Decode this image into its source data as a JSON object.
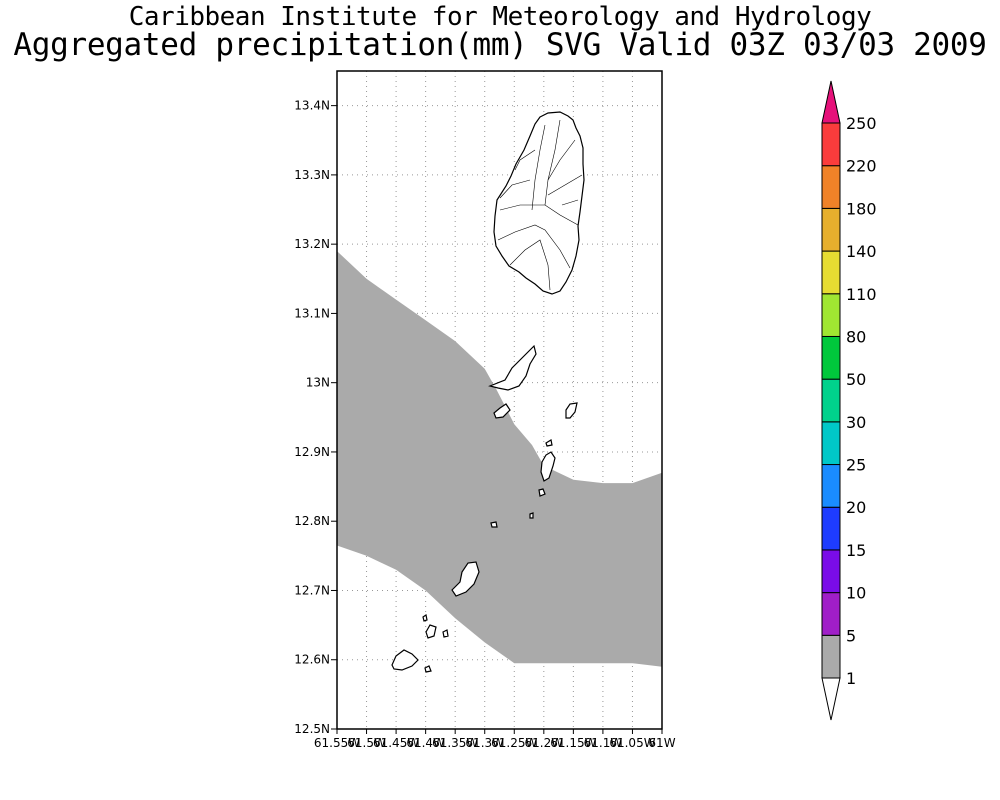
{
  "title": {
    "line1": "Caribbean Institute for Meteorology and Hydrology",
    "line2": "Aggregated precipitation(mm) SVG Valid 03Z 03/03 2009"
  },
  "map": {
    "lat_range": [
      12.5,
      13.45
    ],
    "lon_range": [
      -61.55,
      -61.0
    ],
    "lat_ticks": [
      {
        "value": 12.5,
        "label": "12.5N"
      },
      {
        "value": 12.6,
        "label": "12.6N"
      },
      {
        "value": 12.7,
        "label": "12.7N"
      },
      {
        "value": 12.8,
        "label": "12.8N"
      },
      {
        "value": 12.9,
        "label": "12.9N"
      },
      {
        "value": 13.0,
        "label": "13N"
      },
      {
        "value": 13.1,
        "label": "13.1N"
      },
      {
        "value": 13.2,
        "label": "13.2N"
      },
      {
        "value": 13.3,
        "label": "13.3N"
      },
      {
        "value": 13.4,
        "label": "13.4N"
      }
    ],
    "lon_ticks": [
      {
        "value": -61.55,
        "label": "61.55W"
      },
      {
        "value": -61.5,
        "label": "61.5W"
      },
      {
        "value": -61.45,
        "label": "61.45W"
      },
      {
        "value": -61.4,
        "label": "61.4W"
      },
      {
        "value": -61.35,
        "label": "61.35W"
      },
      {
        "value": -61.3,
        "label": "61.3W"
      },
      {
        "value": -61.25,
        "label": "61.25W"
      },
      {
        "value": -61.2,
        "label": "61.2W"
      },
      {
        "value": -61.15,
        "label": "61.15W"
      },
      {
        "value": -61.1,
        "label": "61.1W"
      },
      {
        "value": -61.05,
        "label": "61.05W"
      },
      {
        "value": -61.0,
        "label": "61W"
      }
    ],
    "grid": true,
    "precip_band": {
      "category": "1-5 mm",
      "color": "#aaaaaa",
      "north_edge": [
        [
          -61.55,
          13.19
        ],
        [
          -61.5,
          13.15
        ],
        [
          -61.45,
          13.12
        ],
        [
          -61.4,
          13.09
        ],
        [
          -61.35,
          13.06
        ],
        [
          -61.3,
          13.02
        ],
        [
          -61.28,
          12.99
        ],
        [
          -61.25,
          12.94
        ],
        [
          -61.22,
          12.91
        ],
        [
          -61.2,
          12.88
        ],
        [
          -61.15,
          12.86
        ],
        [
          -61.1,
          12.855
        ],
        [
          -61.05,
          12.855
        ],
        [
          -61.0,
          12.87
        ]
      ],
      "south_edge": [
        [
          -61.0,
          12.59
        ],
        [
          -61.05,
          12.595
        ],
        [
          -61.1,
          12.595
        ],
        [
          -61.15,
          12.595
        ],
        [
          -61.2,
          12.595
        ],
        [
          -61.25,
          12.595
        ],
        [
          -61.3,
          12.625
        ],
        [
          -61.35,
          12.66
        ],
        [
          -61.4,
          12.7
        ],
        [
          -61.45,
          12.73
        ],
        [
          -61.5,
          12.75
        ],
        [
          -61.55,
          12.765
        ]
      ]
    }
  },
  "colorbar": {
    "under_color": "#ffffff",
    "over_color": "#e6117a",
    "levels": [
      {
        "label": "1",
        "color": "#aaaaaa"
      },
      {
        "label": "5",
        "color": "#a01ec8"
      },
      {
        "label": "10",
        "color": "#7a0ce8"
      },
      {
        "label": "15",
        "color": "#1e3cff"
      },
      {
        "label": "20",
        "color": "#1a8cff"
      },
      {
        "label": "25",
        "color": "#00c8c8"
      },
      {
        "label": "30",
        "color": "#00d28c"
      },
      {
        "label": "50",
        "color": "#00c83c"
      },
      {
        "label": "80",
        "color": "#a0e632"
      },
      {
        "label": "110",
        "color": "#e6dc32"
      },
      {
        "label": "140",
        "color": "#e6af2d"
      },
      {
        "label": "180",
        "color": "#f08228"
      },
      {
        "label": "220",
        "color": "#fa3c3c"
      },
      {
        "label": "250",
        "color": ""
      }
    ]
  }
}
